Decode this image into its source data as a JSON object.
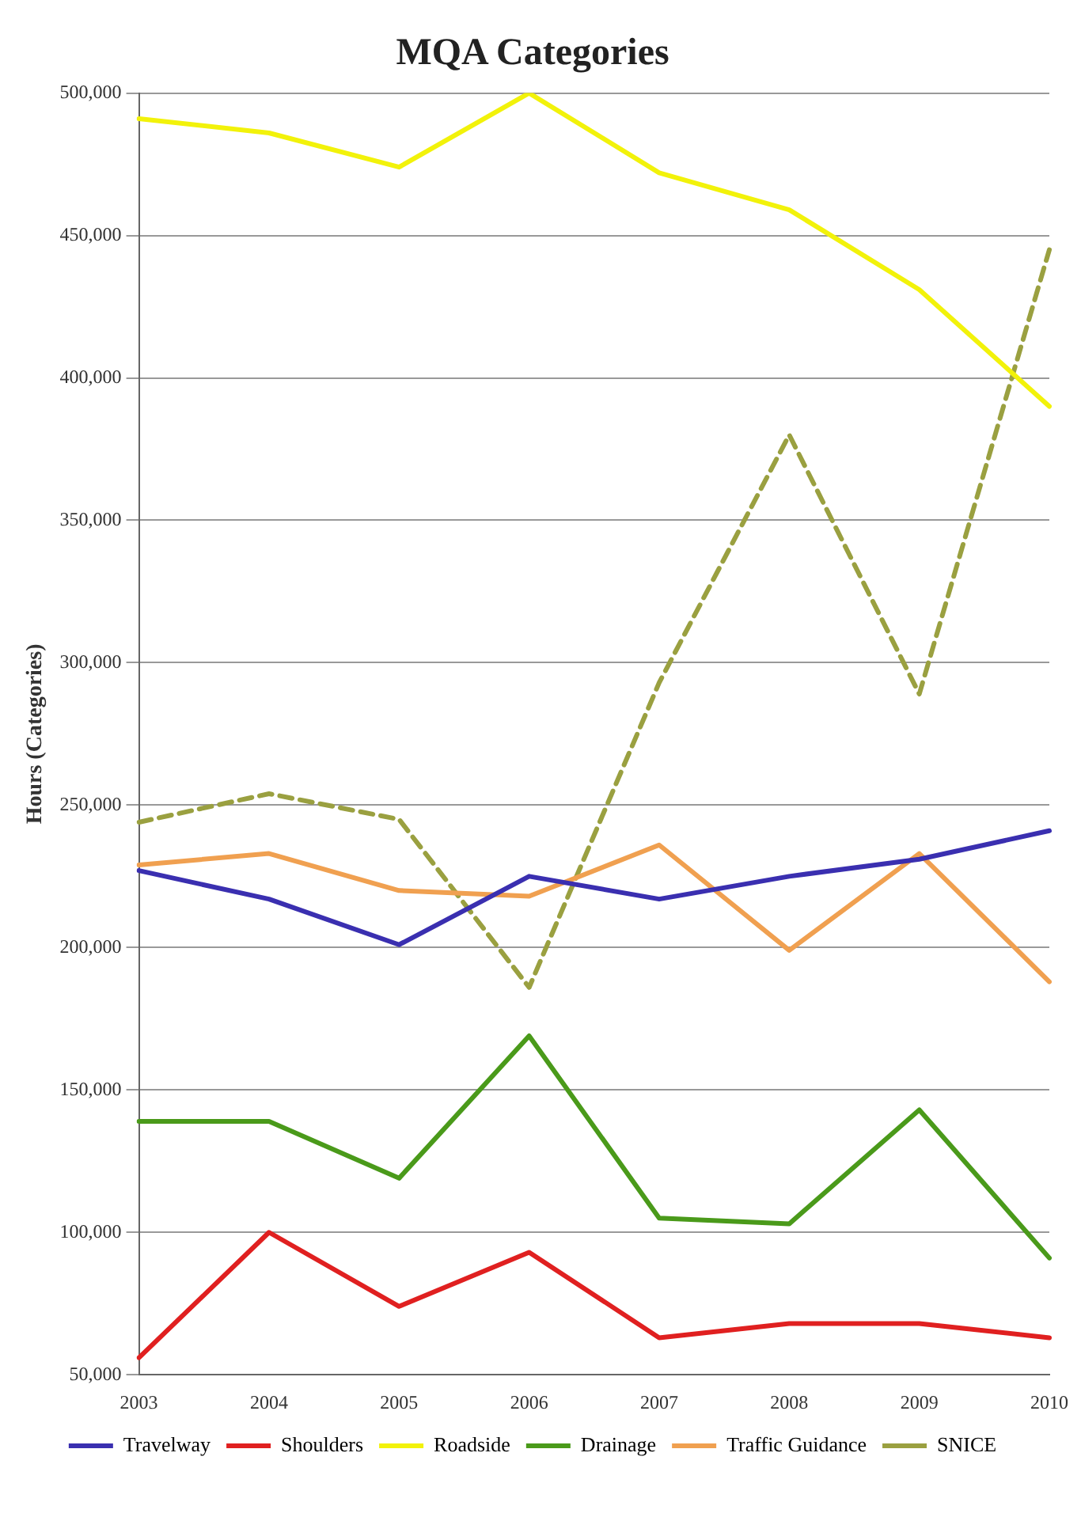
{
  "chart_data": {
    "type": "line",
    "title": "MQA Categories",
    "ylabel": "Hours (Categories)",
    "categories": [
      "2003",
      "2004",
      "2005",
      "2006",
      "2007",
      "2008",
      "2009",
      "2010"
    ],
    "series": [
      {
        "name": "Travelway",
        "color": "#3a2fb0",
        "values": [
          227000,
          217000,
          201000,
          225000,
          217000,
          225000,
          231000,
          241000
        ]
      },
      {
        "name": "Shoulders",
        "color": "#e02020",
        "values": [
          56000,
          100000,
          74000,
          93000,
          63000,
          68000,
          68000,
          63000
        ]
      },
      {
        "name": "Roadside",
        "color": "#f2f20a",
        "values": [
          491000,
          486000,
          474000,
          500000,
          472000,
          459000,
          431000,
          390000
        ]
      },
      {
        "name": "Drainage",
        "color": "#4a9a1a",
        "values": [
          139000,
          139000,
          119000,
          169000,
          105000,
          103000,
          143000,
          91000
        ]
      },
      {
        "name": "Traffic Guidance",
        "color": "#f0a050",
        "values": [
          229000,
          233000,
          220000,
          218000,
          236000,
          199000,
          233000,
          188000
        ]
      },
      {
        "name": "SNICE",
        "color": "#9aa040",
        "line_style": "dashed",
        "values": [
          244000,
          254000,
          245000,
          186000,
          293000,
          380000,
          289000,
          445000
        ]
      }
    ],
    "ylim": [
      50000,
      500000
    ],
    "yticks": [
      {
        "value": 50000,
        "label": "50,000"
      },
      {
        "value": 100000,
        "label": "100,000"
      },
      {
        "value": 150000,
        "label": "150,000"
      },
      {
        "value": 200000,
        "label": "200,000"
      },
      {
        "value": 250000,
        "label": "250,000"
      },
      {
        "value": 300000,
        "label": "300,000"
      },
      {
        "value": 350000,
        "label": "350,000"
      },
      {
        "value": 400000,
        "label": "400,000"
      },
      {
        "value": 450000,
        "label": "450,000"
      },
      {
        "value": 500000,
        "label": "500,000"
      }
    ],
    "grid": "y",
    "legend": "bottom",
    "marker": "none"
  }
}
